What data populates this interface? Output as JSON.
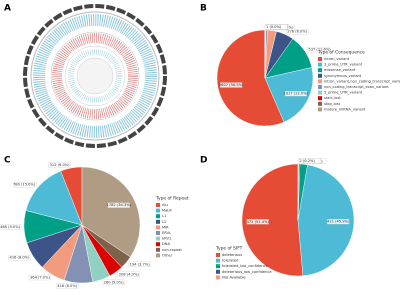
{
  "panel_a_label": "A",
  "chart_data": [
    {
      "type": "pie",
      "panel": "B",
      "legend_title": "Type of Consequence",
      "categories": [
        "intron_variant",
        "3_prime_UTR_variant",
        "missense_variant",
        "synonymous_variant",
        "intron_variant,non_coding_transcript_variant",
        "non_coding_transcript_exon_variant",
        "5_prime_UTR_variant",
        "start_lost",
        "stop_lost",
        "mature_miRNA_variant"
      ],
      "values": [
        2607,
        1017,
        537,
        276,
        138,
        26,
        9,
        2,
        1,
        1
      ],
      "value_labels": [
        "2607 (56.5%)",
        "1017 (22.0%)",
        "537 (11.6%)",
        "276 (6.0%)",
        "138 (3.0%)",
        "26 (0.6%)",
        "9 (0.2%)",
        "2 (0.0%)",
        "1 (0.0%)",
        "1 (0.0%)"
      ],
      "colors": [
        "#e64b35",
        "#4dbbd5",
        "#00a087",
        "#3c5488",
        "#f39b7f",
        "#8491b4",
        "#91d1c2",
        "#dc0000",
        "#7e6148",
        "#b09c85"
      ]
    },
    {
      "type": "pie",
      "panel": "C",
      "legend_title": "Type of Repeat",
      "categories": [
        "Alu",
        "MaLR",
        "L1",
        "L2",
        "MIR",
        "ERVL",
        "ERV1",
        "DNA",
        "non-repeat",
        "Other"
      ],
      "values": [
        312,
        780,
        468,
        416,
        364,
        416,
        260,
        208,
        194,
        1782
      ],
      "value_labels": [
        "312 (6.0%)",
        "780 (15.0%)",
        "468 (9.0%)",
        "416 (8.0%)",
        "364 (7.0%)",
        "416 (8.0%)",
        "260 (5.0%)",
        "208 (4.0%)",
        "194 (3.7%)",
        "1782 (34.3%)"
      ],
      "colors": [
        "#e64b35",
        "#4dbbd5",
        "#00a087",
        "#3c5488",
        "#f39b7f",
        "#8491b4",
        "#91d1c2",
        "#dc0000",
        "#7e6148",
        "#b09c85"
      ]
    },
    {
      "type": "pie",
      "panel": "D",
      "legend_title": "Type of SIFT",
      "categories": [
        "deleterious",
        "tolerated",
        "tolerated_low_confidence",
        "deleterious_low_confidence",
        "Not Available"
      ],
      "values": [
        472,
        421,
        20,
        3,
        2
      ],
      "value_labels": [
        "472 (51.4%)",
        "421 (45.9%)",
        "20 (2.2%)",
        "3 (0.3%)",
        "2 (0.2%)"
      ],
      "colors": [
        "#e64b35",
        "#4dbbd5",
        "#00a087",
        "#3c5488",
        "#f39b7f"
      ]
    }
  ]
}
